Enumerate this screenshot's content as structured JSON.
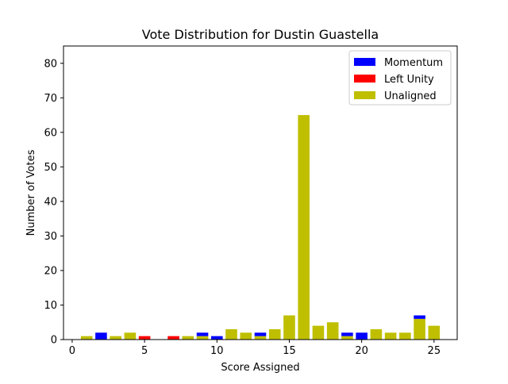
{
  "chart_data": {
    "type": "bar",
    "stacked": true,
    "title": "Vote Distribution for Dustin Guastella",
    "xlabel": "Score Assigned",
    "ylabel": "Number of Votes",
    "xlim": [
      -0.6,
      26.6
    ],
    "ylim": [
      0,
      85
    ],
    "xticks": [
      0,
      5,
      10,
      15,
      20,
      25
    ],
    "yticks": [
      0,
      10,
      20,
      30,
      40,
      50,
      60,
      70,
      80
    ],
    "legend_position": "top-right",
    "x": [
      0,
      1,
      2,
      3,
      4,
      5,
      6,
      7,
      8,
      9,
      10,
      11,
      12,
      13,
      14,
      15,
      16,
      17,
      18,
      19,
      20,
      21,
      22,
      23,
      24,
      25
    ],
    "series": [
      {
        "name": "Unaligned",
        "color": "#bfbf00",
        "values": [
          0,
          1,
          0,
          1,
          2,
          0,
          0,
          0,
          1,
          1,
          0,
          3,
          2,
          1,
          3,
          7,
          65,
          4,
          5,
          1,
          0,
          3,
          2,
          2,
          6,
          4
        ]
      },
      {
        "name": "Left Unity",
        "color": "#ff0000",
        "values": [
          0,
          0,
          0,
          0,
          0,
          1,
          0,
          1,
          0,
          0,
          0,
          0,
          0,
          0,
          0,
          0,
          0,
          0,
          0,
          0,
          0,
          0,
          0,
          0,
          0,
          0
        ]
      },
      {
        "name": "Momentum",
        "color": "#0000ff",
        "values": [
          0,
          0,
          2,
          0,
          0,
          0,
          0,
          0,
          0,
          1,
          1,
          0,
          0,
          1,
          0,
          0,
          0,
          0,
          0,
          1,
          2,
          0,
          0,
          0,
          1,
          0
        ]
      }
    ],
    "legend": [
      {
        "label": "Momentum",
        "color": "#0000ff"
      },
      {
        "label": "Left Unity",
        "color": "#ff0000"
      },
      {
        "label": "Unaligned",
        "color": "#bfbf00"
      }
    ]
  }
}
